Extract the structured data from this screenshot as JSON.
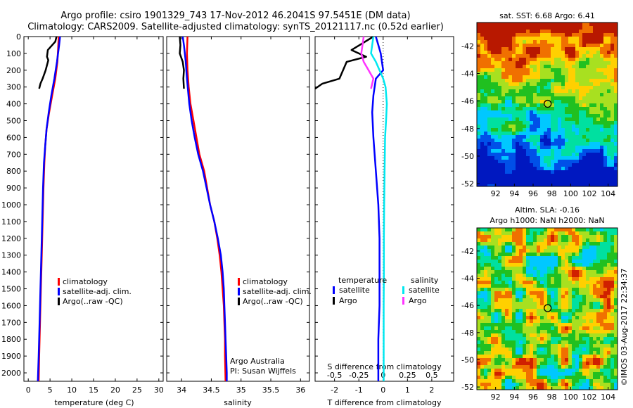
{
  "header": {
    "line1": "Argo profile: csiro 1901329_743 17-Nov-2012 46.2041S 97.5451E (DM data)",
    "line2": "Climatology: CARS2009. Satellite-adjusted climatology: synTS_20121117.nc (0.52d earlier)"
  },
  "colors": {
    "climatology": "#ff0000",
    "satellite": "#0000ff",
    "argo": "#000000",
    "satellite_salinity": "#00e8f0",
    "argo_salinity": "#ff33ff"
  },
  "depth_axis": {
    "ylim": [
      0,
      2050
    ],
    "ticks": [
      0,
      100,
      200,
      300,
      400,
      500,
      600,
      700,
      800,
      900,
      1000,
      1100,
      1200,
      1300,
      1400,
      1500,
      1600,
      1700,
      1800,
      1900,
      2000
    ]
  },
  "chart_data": [
    {
      "id": "temperature",
      "type": "line",
      "xlabel": "temperature (deg C)",
      "xlim": [
        -1,
        31
      ],
      "xticks": [
        0,
        5,
        10,
        15,
        20,
        25,
        30
      ],
      "legend": {
        "placement": "lower-middle",
        "entries": [
          "climatology",
          "satellite-adj. clim.",
          "Argo(..raw -QC)"
        ]
      },
      "series": [
        {
          "name": "climatology",
          "color_key": "climatology",
          "points": [
            [
              7.0,
              0
            ],
            [
              6.9,
              50
            ],
            [
              6.7,
              150
            ],
            [
              6.2,
              250
            ],
            [
              5.5,
              350
            ],
            [
              4.8,
              450
            ],
            [
              4.2,
              550
            ],
            [
              3.9,
              650
            ],
            [
              3.7,
              750
            ],
            [
              3.5,
              900
            ],
            [
              3.3,
              1100
            ],
            [
              3.1,
              1300
            ],
            [
              2.9,
              1500
            ],
            [
              2.7,
              1700
            ],
            [
              2.5,
              1900
            ],
            [
              2.4,
              2050
            ]
          ]
        },
        {
          "name": "satellite-adj. clim.",
          "color_key": "satellite",
          "points": [
            [
              7.3,
              0
            ],
            [
              7.1,
              50
            ],
            [
              6.6,
              150
            ],
            [
              6.0,
              250
            ],
            [
              5.3,
              350
            ],
            [
              4.7,
              450
            ],
            [
              4.2,
              550
            ],
            [
              3.9,
              650
            ],
            [
              3.6,
              750
            ],
            [
              3.4,
              900
            ],
            [
              3.2,
              1100
            ],
            [
              3.0,
              1300
            ],
            [
              2.8,
              1500
            ],
            [
              2.6,
              1700
            ],
            [
              2.4,
              1900
            ],
            [
              2.2,
              2050
            ]
          ]
        },
        {
          "name": "Argo(..raw -QC)",
          "color_key": "argo",
          "points": [
            [
              6.5,
              0
            ],
            [
              6.2,
              30
            ],
            [
              4.5,
              80
            ],
            [
              4.3,
              120
            ],
            [
              4.6,
              140
            ],
            [
              4.0,
              200
            ],
            [
              3.3,
              250
            ],
            [
              2.8,
              280
            ],
            [
              2.5,
              310
            ]
          ]
        }
      ]
    },
    {
      "id": "salinity",
      "type": "line",
      "xlabel": "salinity",
      "xlim": [
        33.75,
        36.15
      ],
      "xticks": [
        34,
        34.5,
        35,
        35.5,
        36
      ],
      "annotation": [
        "Argo Australia",
        "PI: Susan Wijffels"
      ],
      "legend": {
        "placement": "lower-right",
        "entries": [
          "climatology",
          "satellite-adj. clim.",
          "Argo(..raw -QC)"
        ]
      },
      "series": [
        {
          "name": "climatology",
          "color_key": "climatology",
          "points": [
            [
              34.1,
              0
            ],
            [
              34.09,
              100
            ],
            [
              34.1,
              200
            ],
            [
              34.12,
              300
            ],
            [
              34.15,
              400
            ],
            [
              34.2,
              500
            ],
            [
              34.25,
              600
            ],
            [
              34.3,
              700
            ],
            [
              34.38,
              800
            ],
            [
              34.43,
              900
            ],
            [
              34.48,
              1000
            ],
            [
              34.55,
              1100
            ],
            [
              34.6,
              1200
            ],
            [
              34.64,
              1300
            ],
            [
              34.67,
              1400
            ],
            [
              34.69,
              1500
            ],
            [
              34.71,
              1600
            ],
            [
              34.72,
              1700
            ],
            [
              34.73,
              1800
            ],
            [
              34.73,
              1900
            ],
            [
              34.74,
              2050
            ]
          ]
        },
        {
          "name": "satellite-adj. clim.",
          "color_key": "satellite",
          "points": [
            [
              34.02,
              0
            ],
            [
              34.04,
              50
            ],
            [
              34.07,
              150
            ],
            [
              34.09,
              250
            ],
            [
              34.13,
              400
            ],
            [
              34.17,
              500
            ],
            [
              34.22,
              600
            ],
            [
              34.28,
              700
            ],
            [
              34.36,
              800
            ],
            [
              34.42,
              900
            ],
            [
              34.48,
              1000
            ],
            [
              34.55,
              1100
            ],
            [
              34.61,
              1200
            ],
            [
              34.66,
              1300
            ],
            [
              34.69,
              1400
            ],
            [
              34.71,
              1500
            ],
            [
              34.72,
              1600
            ],
            [
              34.73,
              1700
            ],
            [
              34.74,
              1800
            ],
            [
              34.75,
              1900
            ],
            [
              34.76,
              2000
            ],
            [
              34.76,
              2050
            ]
          ]
        },
        {
          "name": "Argo(..raw -QC)",
          "color_key": "argo",
          "points": [
            [
              33.97,
              0
            ],
            [
              33.98,
              50
            ],
            [
              33.97,
              100
            ],
            [
              34.02,
              150
            ],
            [
              34.04,
              200
            ],
            [
              34.03,
              250
            ],
            [
              34.04,
              310
            ]
          ]
        }
      ]
    },
    {
      "id": "difference",
      "type": "line",
      "xlabel": "T difference from climatology",
      "xlabel_top": "S difference from climatology",
      "xlim": [
        -2.8,
        2.9
      ],
      "xticks": [
        -2,
        -1,
        0,
        1,
        2
      ],
      "sticks": [
        "-0.5",
        "-0.25",
        "0",
        "0.25",
        "0.5"
      ],
      "legend": {
        "placement": "lower-middle",
        "columns": [
          {
            "title": "temperature",
            "entries": [
              "satellite",
              "Argo"
            ]
          },
          {
            "title": "salinity",
            "entries": [
              "satellite",
              "Argo"
            ]
          }
        ]
      },
      "series": [
        {
          "name": "satellite",
          "group": "temperature",
          "color_key": "satellite",
          "points": [
            [
              -0.3,
              0
            ],
            [
              -0.2,
              50
            ],
            [
              -0.1,
              100
            ],
            [
              -0.05,
              150
            ],
            [
              0.0,
              200
            ],
            [
              -0.3,
              250
            ],
            [
              -0.4,
              350
            ],
            [
              -0.45,
              450
            ],
            [
              -0.4,
              600
            ],
            [
              -0.3,
              800
            ],
            [
              -0.2,
              1000
            ],
            [
              -0.15,
              1200
            ],
            [
              -0.15,
              1400
            ],
            [
              -0.15,
              1600
            ],
            [
              -0.2,
              1800
            ],
            [
              -0.2,
              2000
            ],
            [
              -0.2,
              2050
            ]
          ]
        },
        {
          "name": "Argo",
          "group": "temperature",
          "color_key": "argo",
          "points": [
            [
              -0.4,
              0
            ],
            [
              -1.3,
              80
            ],
            [
              -0.7,
              120
            ],
            [
              -1.5,
              150
            ],
            [
              -1.8,
              250
            ],
            [
              -2.5,
              280
            ],
            [
              -2.8,
              310
            ]
          ]
        },
        {
          "name": "satellite",
          "group": "salinity",
          "color_key": "satellite_salinity",
          "points": [
            [
              -0.4,
              0
            ],
            [
              -0.5,
              100
            ],
            [
              -0.3,
              150
            ],
            [
              0.0,
              250
            ],
            [
              0.1,
              300
            ],
            [
              0.15,
              400
            ],
            [
              0.12,
              500
            ],
            [
              0.08,
              600
            ],
            [
              0.06,
              800
            ],
            [
              0.04,
              1000
            ],
            [
              0.03,
              1200
            ],
            [
              0.03,
              1400
            ],
            [
              0.02,
              1600
            ],
            [
              0.02,
              1800
            ],
            [
              0.02,
              2050
            ]
          ]
        },
        {
          "name": "Argo",
          "group": "salinity",
          "color_key": "argo_salinity",
          "points": [
            [
              -0.8,
              0
            ],
            [
              -0.9,
              100
            ],
            [
              -0.8,
              150
            ],
            [
              -0.6,
              200
            ],
            [
              -0.4,
              250
            ],
            [
              -0.5,
              310
            ]
          ]
        }
      ]
    },
    {
      "id": "sst-map",
      "type": "heatmap",
      "title": "sat. SST: 6.68 Argo: 6.41",
      "xticks": [
        "92",
        "94",
        "96",
        "98",
        "100",
        "102",
        "104"
      ],
      "yticks": [
        "-42",
        "-44",
        "-46",
        "-48",
        "-50",
        "-52"
      ],
      "xlim": [
        90,
        105
      ],
      "ylim": [
        -52.2,
        -40.3
      ],
      "marker": [
        97.55,
        -46.2
      ],
      "palette": [
        "#0018c0",
        "#0050e8",
        "#00c8ff",
        "#00e0a0",
        "#20c020",
        "#a8e020",
        "#ffd000",
        "#f07000",
        "#b81800"
      ]
    },
    {
      "id": "sla-map",
      "type": "heatmap",
      "title_lines": [
        "Altim. SLA: -0.16",
        "Argo h1000: NaN h2000: NaN"
      ],
      "xticks": [
        "92",
        "94",
        "96",
        "98",
        "100",
        "102",
        "104"
      ],
      "yticks": [
        "-42",
        "-44",
        "-46",
        "-48",
        "-50",
        "-52"
      ],
      "xlim": [
        90,
        105
      ],
      "ylim": [
        -52.2,
        -40.3
      ],
      "marker": [
        97.55,
        -46.2
      ],
      "palette": [
        "#00c8ff",
        "#00e0a0",
        "#20c020",
        "#a8e020",
        "#ffd000",
        "#f07000",
        "#d02000"
      ]
    }
  ],
  "footer": {
    "credit": "©IMOS 03-Aug-2017 22:34:37"
  }
}
